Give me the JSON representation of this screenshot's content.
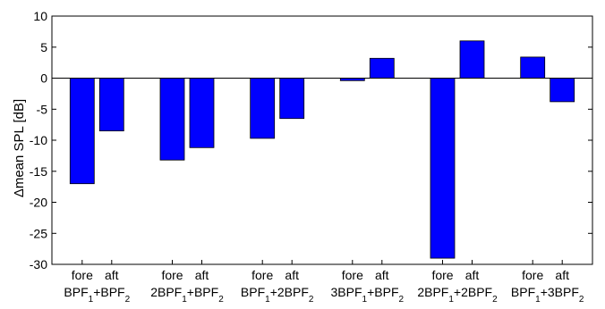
{
  "chart_data": {
    "type": "bar",
    "ylabel": "Δmean SPL [dB]",
    "ylim": [
      -30,
      10
    ],
    "yticks": [
      10,
      5,
      0,
      -5,
      -10,
      -15,
      -20,
      -25,
      -30
    ],
    "grid": false,
    "bar_color": "#0000ff",
    "bar_labels": [
      "fore",
      "aft"
    ],
    "groups": [
      {
        "label": {
          "n1": "",
          "a": "BPF",
          "s1": "1",
          "plus": "+",
          "n2": "",
          "b": "BPF",
          "s2": "2"
        },
        "values": [
          -17.0,
          -8.5
        ]
      },
      {
        "label": {
          "n1": "2",
          "a": "BPF",
          "s1": "1",
          "plus": "+",
          "n2": "",
          "b": "BPF",
          "s2": "2"
        },
        "values": [
          -13.2,
          -11.2
        ]
      },
      {
        "label": {
          "n1": "",
          "a": "BPF",
          "s1": "1",
          "plus": "+",
          "n2": "2",
          "b": "BPF",
          "s2": "2"
        },
        "values": [
          -9.7,
          -6.5
        ]
      },
      {
        "label": {
          "n1": "3",
          "a": "BPF",
          "s1": "1",
          "plus": "+",
          "n2": "",
          "b": "BPF",
          "s2": "2"
        },
        "values": [
          -0.4,
          3.2
        ]
      },
      {
        "label": {
          "n1": "2",
          "a": "BPF",
          "s1": "1",
          "plus": "+",
          "n2": "2",
          "b": "BPF",
          "s2": "2"
        },
        "values": [
          -29.0,
          6.0
        ]
      },
      {
        "label": {
          "n1": "",
          "a": "BPF",
          "s1": "1",
          "plus": "+",
          "n2": "3",
          "b": "BPF",
          "s2": "2"
        },
        "values": [
          3.4,
          -3.8
        ]
      }
    ]
  }
}
